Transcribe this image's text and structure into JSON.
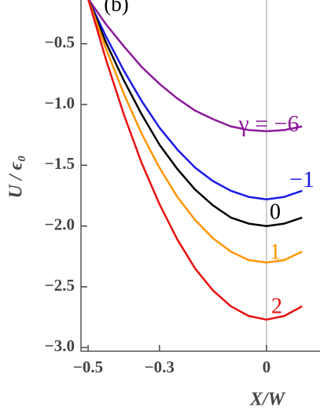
{
  "chart_data": {
    "type": "line",
    "panel_label": "(b)",
    "x_label": "X/W",
    "y_label": "U / ϵ₀",
    "x": [
      -0.5,
      -0.45,
      -0.4,
      -0.35,
      -0.3,
      -0.25,
      -0.2,
      -0.15,
      -0.1,
      -0.05,
      0,
      0.05,
      0.1
    ],
    "series": [
      {
        "name": "γ = −6",
        "color": "#8b1a9a",
        "values": [
          -0.13,
          -0.34,
          -0.52,
          -0.69,
          -0.83,
          -0.95,
          -1.05,
          -1.12,
          -1.18,
          -1.21,
          -1.22,
          -1.21,
          -1.18
        ]
      },
      {
        "name": "−1",
        "color": "#1a1ae6",
        "values": [
          -0.13,
          -0.44,
          -0.72,
          -0.97,
          -1.19,
          -1.37,
          -1.52,
          -1.63,
          -1.71,
          -1.76,
          -1.78,
          -1.76,
          -1.71
        ]
      },
      {
        "name": "0",
        "color": "#000000",
        "values": [
          -0.13,
          -0.49,
          -0.8,
          -1.08,
          -1.33,
          -1.53,
          -1.7,
          -1.83,
          -1.93,
          -1.98,
          -2.0,
          -1.98,
          -1.93
        ]
      },
      {
        "name": "1",
        "color": "#ff9500",
        "values": [
          -0.13,
          -0.54,
          -0.91,
          -1.24,
          -1.52,
          -1.76,
          -1.95,
          -2.1,
          -2.21,
          -2.28,
          -2.3,
          -2.28,
          -2.21
        ]
      },
      {
        "name": "2",
        "color": "#e81010",
        "values": [
          -0.13,
          -0.63,
          -1.08,
          -1.48,
          -1.82,
          -2.11,
          -2.35,
          -2.53,
          -2.66,
          -2.74,
          -2.77,
          -2.74,
          -2.66
        ]
      }
    ],
    "xlim": [
      -0.52,
      0.15
    ],
    "ylim": [
      -3.03,
      -0.14
    ],
    "xticks": [
      {
        "value": -0.5,
        "label": "−0.5"
      },
      {
        "value": -0.3,
        "label": "−0.3"
      },
      0
    ],
    "yticks": [
      {
        "value": -0.5,
        "label": "−0.5"
      },
      {
        "value": -1.0,
        "label": "−1.0"
      },
      {
        "value": -1.5,
        "label": "−1.5"
      },
      {
        "value": -2.0,
        "label": "−2.0"
      },
      {
        "value": -2.5,
        "label": "−2.5"
      },
      {
        "value": -3.0,
        "label": "−3.0"
      }
    ]
  }
}
